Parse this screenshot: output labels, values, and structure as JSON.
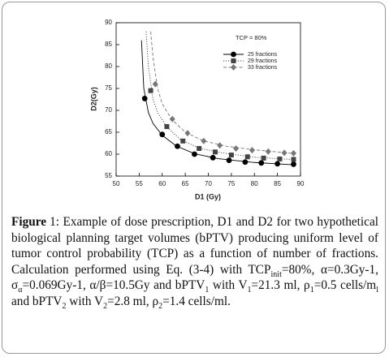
{
  "chart_data": {
    "type": "scatter-line",
    "annotation": "TCP = 80%",
    "xlabel": "D1 (Gy)",
    "ylabel": "D2(Gy)",
    "xlim": [
      50,
      90
    ],
    "xticks": [
      50,
      55,
      60,
      65,
      70,
      75,
      80,
      85,
      90
    ],
    "ylim": [
      55,
      90
    ],
    "yticks": [
      55,
      60,
      65,
      70,
      75,
      80,
      85,
      90
    ],
    "series": [
      {
        "name": "25 fractions",
        "color": "#000000",
        "marker": "circle",
        "line": "solid",
        "x": [
          56.2,
          60,
          63.3,
          67,
          71,
          74.5,
          78,
          81.5,
          85,
          88.5
        ],
        "values": [
          72.7,
          64.5,
          61.8,
          60,
          59.2,
          58.6,
          58.2,
          58,
          57.8,
          57.7
        ],
        "fit_x": [
          55.5,
          56,
          57,
          58,
          60,
          63,
          67,
          72,
          80,
          88
        ],
        "fit_y": [
          86,
          75,
          69.5,
          67,
          64.3,
          61.9,
          60.1,
          59,
          58.1,
          57.6
        ]
      },
      {
        "name": "29 fractions",
        "color": "#444444",
        "marker": "square",
        "line": "dotted",
        "x": [
          57.5,
          61,
          64.5,
          68,
          71.5,
          75,
          78.5,
          82,
          85.5,
          88.5
        ],
        "values": [
          74.5,
          66.3,
          63,
          61.3,
          60.5,
          59.8,
          59.4,
          59.1,
          58.9,
          58.8
        ],
        "fit_x": [
          56.5,
          57,
          58,
          59,
          61,
          64,
          68,
          73,
          80,
          88
        ],
        "fit_y": [
          88,
          80,
          72.5,
          69.5,
          66.2,
          63.3,
          61.4,
          60.3,
          59.3,
          58.8
        ]
      },
      {
        "name": "33 fractions",
        "color": "#777777",
        "marker": "diamond",
        "line": "dashed",
        "x": [
          58.5,
          62.2,
          65.5,
          69,
          72.5,
          76,
          79.5,
          83,
          86.5,
          88.5
        ],
        "values": [
          76,
          68,
          64.8,
          63,
          62,
          61.3,
          60.9,
          60.6,
          60.3,
          60.2
        ],
        "fit_x": [
          57.5,
          58,
          59,
          60,
          62,
          65,
          69,
          74,
          80,
          88
        ],
        "fit_y": [
          88,
          82,
          75,
          71.5,
          68,
          65,
          63,
          61.8,
          61,
          60.2
        ]
      }
    ]
  },
  "caption": {
    "label": "Figure",
    "runs": [
      {
        "text": "1: Example of dose prescription, D1 and D2 for two hypothetical biological planning target volumes (bPTV) producing uniform level of tumor control probability (TCP) as a function of number of fractions. Calculation performed using Eq. (3-4) with TCP"
      },
      {
        "text": "init",
        "sub": true
      },
      {
        "text": "=80%, α=0.3Gy-1, σ"
      },
      {
        "text": "α",
        "sub": true
      },
      {
        "text": "=0.069Gy-1, α/β=10.5Gy and bPTV"
      },
      {
        "text": "1",
        "sub": true
      },
      {
        "text": " with V"
      },
      {
        "text": "1",
        "sub": true
      },
      {
        "text": "=21.3 ml, ρ"
      },
      {
        "text": "1",
        "sub": true
      },
      {
        "text": "=0.5 cells/m"
      },
      {
        "text": "l",
        "sub": true
      },
      {
        "text": " and bPTV"
      },
      {
        "text": "2",
        "sub": true
      },
      {
        "text": " with V"
      },
      {
        "text": "2",
        "sub": true
      },
      {
        "text": "=2.8 ml, ρ"
      },
      {
        "text": "2",
        "sub": true
      },
      {
        "text": "=1.4 cells/ml."
      }
    ]
  }
}
